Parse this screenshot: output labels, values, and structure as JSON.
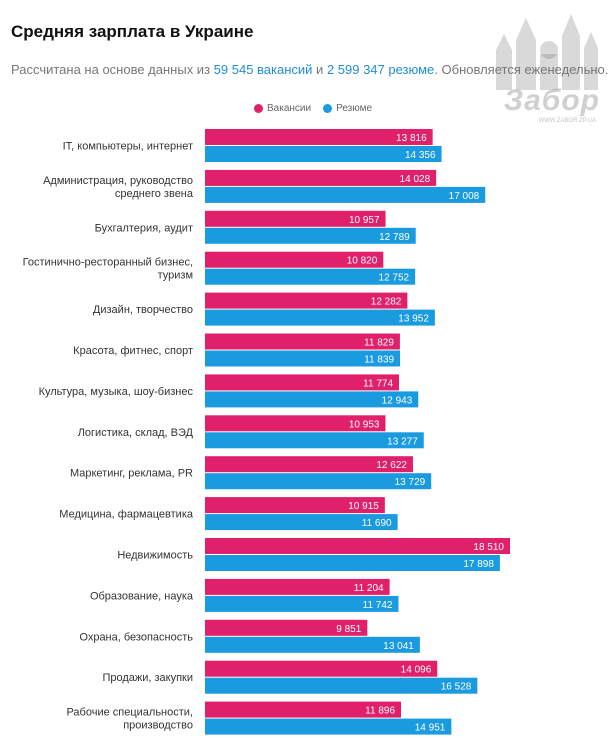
{
  "header": {
    "title": "Средняя зарплата в Украине",
    "subtitle_prefix": "Рассчитана на основе данных из ",
    "vacancies_link": "59 545 вакансий",
    "subtitle_and": " и ",
    "resumes_link": "2 599 347 резюме",
    "subtitle_suffix": ". Обновляется еженедельно."
  },
  "watermark": {
    "brand": "Забор",
    "url": "WWW.ZABOR.ZP.UA"
  },
  "colors": {
    "vacancies": "#e0206a",
    "resumes": "#1a9be0"
  },
  "chart_data": {
    "type": "bar",
    "orientation": "horizontal",
    "legend_position": "top",
    "grid": false,
    "xlim": [
      0,
      20000
    ],
    "categories": [
      [
        "ІТ, компьютеры, интернет"
      ],
      [
        "Администрация, руководство",
        "среднего звена"
      ],
      [
        "Бухгалтерия, аудит"
      ],
      [
        "Гостинично-ресторанный бизнес,",
        "туризм"
      ],
      [
        "Дизайн, творчество"
      ],
      [
        "Красота, фитнес, спорт"
      ],
      [
        "Культура, музыка, шоу-бизнес"
      ],
      [
        "Логистика, склад, ВЭД"
      ],
      [
        "Маркетинг, реклама, PR"
      ],
      [
        "Медицина, фармацевтика"
      ],
      [
        "Недвижимость"
      ],
      [
        "Образование, наука"
      ],
      [
        "Охрана, безопасность"
      ],
      [
        "Продажи, закупки"
      ],
      [
        "Рабочие специальности,",
        "производство"
      ]
    ],
    "series": [
      {
        "name": "Вакансии",
        "values": [
          13816,
          14028,
          10957,
          10820,
          12282,
          11829,
          11774,
          10953,
          12622,
          10915,
          18510,
          11204,
          9851,
          14096,
          11896
        ],
        "labels": [
          "13 816",
          "14 028",
          "10 957",
          "10 820",
          "12 282",
          "11 829",
          "11 774",
          "10 953",
          "12 622",
          "10 915",
          "18 510",
          "11 204",
          "9 851",
          "14 096",
          "11 896"
        ]
      },
      {
        "name": "Резюме",
        "values": [
          14356,
          17008,
          12789,
          12752,
          13952,
          11839,
          12943,
          13277,
          13729,
          11690,
          17898,
          11742,
          13041,
          16528,
          14951
        ],
        "labels": [
          "14 356",
          "17 008",
          "12 789",
          "12 752",
          "13 952",
          "11 839",
          "12 943",
          "13 277",
          "13 729",
          "11 690",
          "17 898",
          "11 742",
          "13 041",
          "16 528",
          "14 951"
        ]
      }
    ]
  }
}
